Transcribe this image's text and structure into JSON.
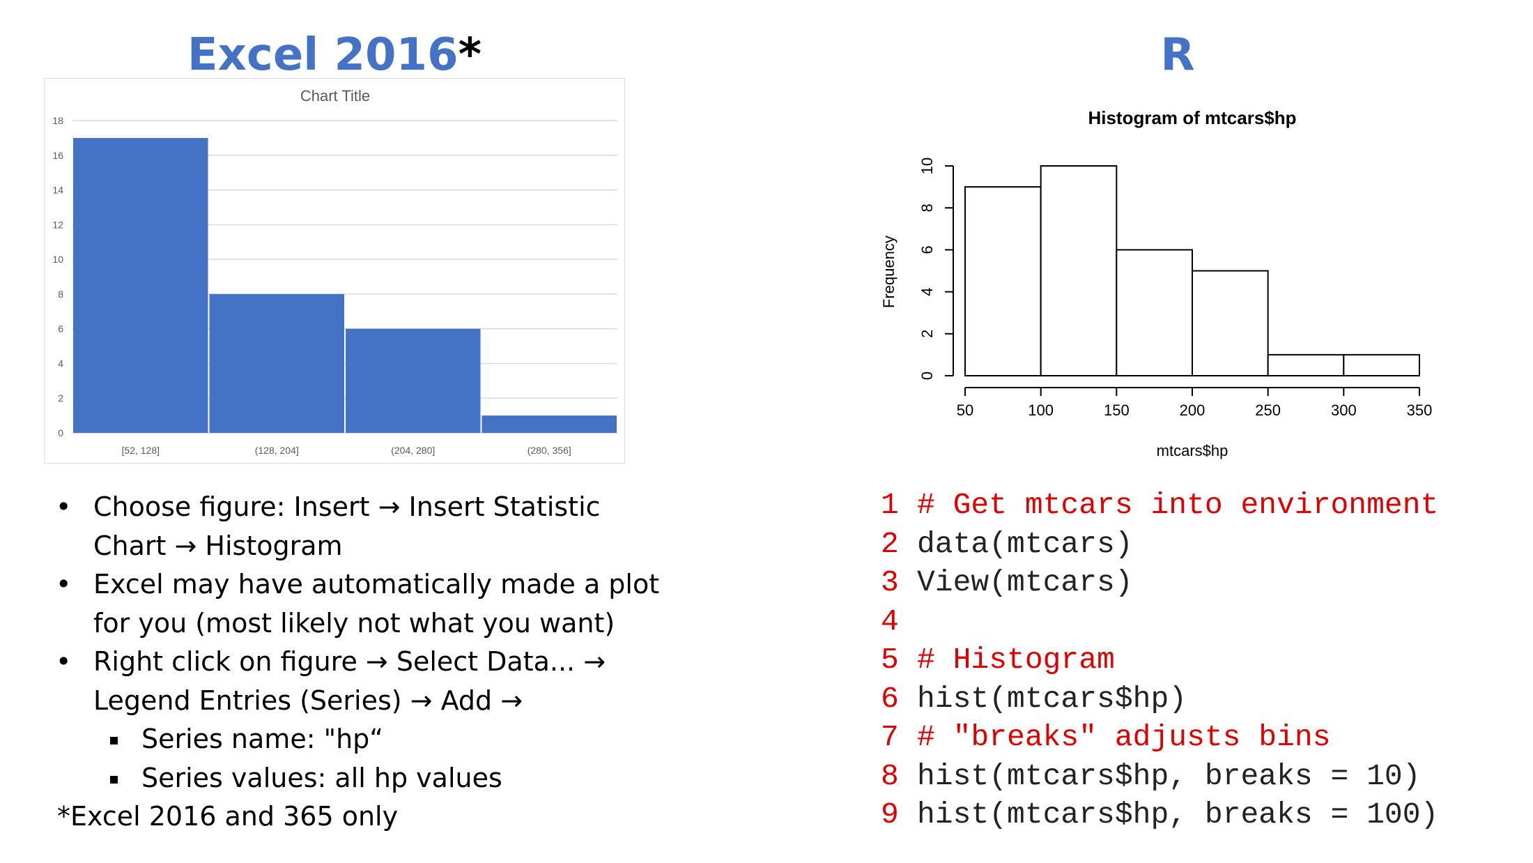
{
  "excel_heading": {
    "title": "Excel 2016",
    "star": "*"
  },
  "r_heading": {
    "title": "R"
  },
  "chart_data": [
    {
      "type": "bar",
      "title": "Chart Title",
      "categories": [
        "[52, 128]",
        "(128, 204]",
        "(204, 280]",
        "(280, 356]"
      ],
      "values": [
        17,
        8,
        6,
        1
      ],
      "xlabel": "",
      "ylabel": "",
      "ylim": [
        0,
        18
      ],
      "yticks": [
        0,
        2,
        4,
        6,
        8,
        10,
        12,
        14,
        16,
        18
      ],
      "grid": true,
      "color": "#4472c4"
    },
    {
      "type": "bar",
      "title": "Histogram of mtcars$hp",
      "bins": [
        [
          50,
          100
        ],
        [
          100,
          150
        ],
        [
          150,
          200
        ],
        [
          200,
          250
        ],
        [
          250,
          300
        ],
        [
          300,
          350
        ]
      ],
      "values": [
        9,
        10,
        6,
        5,
        1,
        1
      ],
      "xlabel": "mtcars$hp",
      "ylabel": "Frequency",
      "xlim": [
        50,
        350
      ],
      "ylim": [
        0,
        10
      ],
      "xticks": [
        50,
        100,
        150,
        200,
        250,
        300,
        350
      ],
      "yticks": [
        0,
        2,
        4,
        6,
        8,
        10
      ],
      "grid": false
    }
  ],
  "instructions": {
    "bullets": [
      {
        "lines": [
          "Choose figure: Insert → Insert Statistic",
          "Chart → Histogram"
        ]
      },
      {
        "lines": [
          "Excel may have automatically made a plot",
          "for you (most likely not what you want)"
        ]
      },
      {
        "lines": [
          "Right click on figure → Select Data... →",
          "Legend Entries (Series) → Add →"
        ]
      }
    ],
    "sub_bullets": [
      "Series name: \"hp“",
      "Series values: all hp values"
    ],
    "footnote": "*Excel 2016 and 365 only"
  },
  "code": {
    "lines": [
      {
        "num": "1",
        "text": "# Get mtcars into environment",
        "comment": true
      },
      {
        "num": "2",
        "text": "data(mtcars)",
        "comment": false
      },
      {
        "num": "3",
        "text": "View(mtcars)",
        "comment": false
      },
      {
        "num": "4",
        "text": "",
        "comment": false
      },
      {
        "num": "5",
        "text": "# Histogram",
        "comment": true
      },
      {
        "num": "6",
        "text": "hist(mtcars$hp)",
        "comment": false
      },
      {
        "num": "7",
        "text": "# \"breaks\" adjusts bins",
        "comment": true
      },
      {
        "num": "8",
        "text": "hist(mtcars$hp, breaks = 10)",
        "comment": false
      },
      {
        "num": "9",
        "text": "hist(mtcars$hp, breaks = 100)",
        "comment": false
      }
    ]
  }
}
